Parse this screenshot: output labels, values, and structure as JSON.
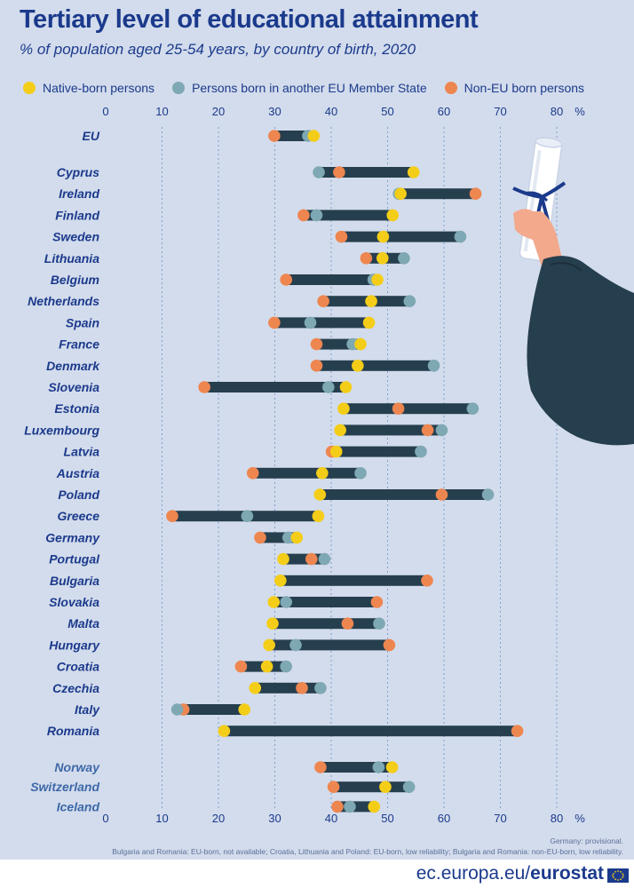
{
  "header": {
    "title": "Tertiary level of educational attainment",
    "subtitle": "% of population aged 25-54 years, by country of birth, 2020"
  },
  "legend": {
    "native": "Native-born persons",
    "eu": "Persons born in another EU Member State",
    "noneu": "Non-EU born persons"
  },
  "colors": {
    "native": "#f4cd18",
    "eu": "#7ea8b3",
    "noneu": "#ee8650",
    "bar": "#263f4e",
    "text": "#1b3a8c",
    "text_alt": "#3d68a8",
    "grid": "#7da0cf",
    "background": "#d3dcec"
  },
  "footnotes": {
    "line1": "Germany: provisional.",
    "line2": "Bulgaria and Romania: EU-born, not available; Croatia, Lithuania and Poland: EU-born, low reliability; Bulgaria and Romania: non-EU-born, low reliability."
  },
  "footer": {
    "site_prefix": "ec.europa.eu/",
    "site_brand": "eurostat"
  },
  "chart_data": {
    "type": "dot-range",
    "xlim": [
      0,
      80
    ],
    "xticks": [
      0,
      10,
      20,
      30,
      40,
      50,
      60,
      70,
      80
    ],
    "unit": "%",
    "series_order": [
      "native",
      "eu",
      "noneu"
    ],
    "rows": [
      {
        "country": "EU",
        "group": "eu-aggregate",
        "native": 36.9,
        "eu": 35.9,
        "noneu": 29.9
      },
      {
        "country": "Cyprus",
        "group": "member",
        "native": 54.6,
        "eu": 37.8,
        "noneu": 41.4
      },
      {
        "country": "Ireland",
        "group": "member",
        "native": 52.3,
        "eu": 52.0,
        "noneu": 65.6
      },
      {
        "country": "Finland",
        "group": "member",
        "native": 50.9,
        "eu": 37.4,
        "noneu": 35.1
      },
      {
        "country": "Sweden",
        "group": "member",
        "native": 49.2,
        "eu": 62.9,
        "noneu": 41.8
      },
      {
        "country": "Lithuania",
        "group": "member",
        "native": 49.1,
        "eu": 52.9,
        "noneu": 46.2
      },
      {
        "country": "Belgium",
        "group": "member",
        "native": 48.2,
        "eu": 47.5,
        "noneu": 32.0
      },
      {
        "country": "Netherlands",
        "group": "member",
        "native": 47.1,
        "eu": 53.9,
        "noneu": 38.6
      },
      {
        "country": "Spain",
        "group": "member",
        "native": 46.7,
        "eu": 36.3,
        "noneu": 29.9
      },
      {
        "country": "France",
        "group": "member",
        "native": 45.2,
        "eu": 43.8,
        "noneu": 37.4
      },
      {
        "country": "Denmark",
        "group": "member",
        "native": 44.7,
        "eu": 58.2,
        "noneu": 37.4
      },
      {
        "country": "Slovenia",
        "group": "member",
        "native": 42.6,
        "eu": 39.5,
        "noneu": 17.5
      },
      {
        "country": "Estonia",
        "group": "member",
        "native": 42.2,
        "eu": 65.1,
        "noneu": 51.9
      },
      {
        "country": "Luxembourg",
        "group": "member",
        "native": 41.6,
        "eu": 59.6,
        "noneu": 57.1
      },
      {
        "country": "Latvia",
        "group": "member",
        "native": 40.9,
        "eu": 55.9,
        "noneu": 40.1
      },
      {
        "country": "Austria",
        "group": "member",
        "native": 38.4,
        "eu": 45.2,
        "noneu": 26.1
      },
      {
        "country": "Poland",
        "group": "member",
        "native": 38.0,
        "eu": 67.8,
        "noneu": 59.6
      },
      {
        "country": "Greece",
        "group": "member",
        "native": 37.7,
        "eu": 25.1,
        "noneu": 11.8
      },
      {
        "country": "Germany",
        "group": "member",
        "native": 33.9,
        "eu": 32.4,
        "noneu": 27.4
      },
      {
        "country": "Portugal",
        "group": "member",
        "native": 31.5,
        "eu": 38.8,
        "noneu": 36.5
      },
      {
        "country": "Bulgaria",
        "group": "member",
        "native": 31.0,
        "eu": null,
        "noneu": 57.0
      },
      {
        "country": "Slovakia",
        "group": "member",
        "native": 29.8,
        "eu": 32.0,
        "noneu": 48.1
      },
      {
        "country": "Malta",
        "group": "member",
        "native": 29.6,
        "eu": 48.5,
        "noneu": 42.9
      },
      {
        "country": "Hungary",
        "group": "member",
        "native": 29.0,
        "eu": 33.7,
        "noneu": 50.3
      },
      {
        "country": "Croatia",
        "group": "member",
        "native": 28.6,
        "eu": 32.0,
        "noneu": 24.0
      },
      {
        "country": "Czechia",
        "group": "member",
        "native": 26.5,
        "eu": 38.1,
        "noneu": 34.8
      },
      {
        "country": "Italy",
        "group": "member",
        "native": 24.6,
        "eu": 12.7,
        "noneu": 13.8
      },
      {
        "country": "Romania",
        "group": "member",
        "native": 21.0,
        "eu": null,
        "noneu": 73.0
      },
      {
        "country": "Norway",
        "group": "efta",
        "native": 50.8,
        "eu": 48.4,
        "noneu": 38.1
      },
      {
        "country": "Switzerland",
        "group": "efta",
        "native": 49.6,
        "eu": 53.8,
        "noneu": 40.4
      },
      {
        "country": "Iceland",
        "group": "efta",
        "native": 47.6,
        "eu": 43.3,
        "noneu": 41.1
      }
    ]
  }
}
